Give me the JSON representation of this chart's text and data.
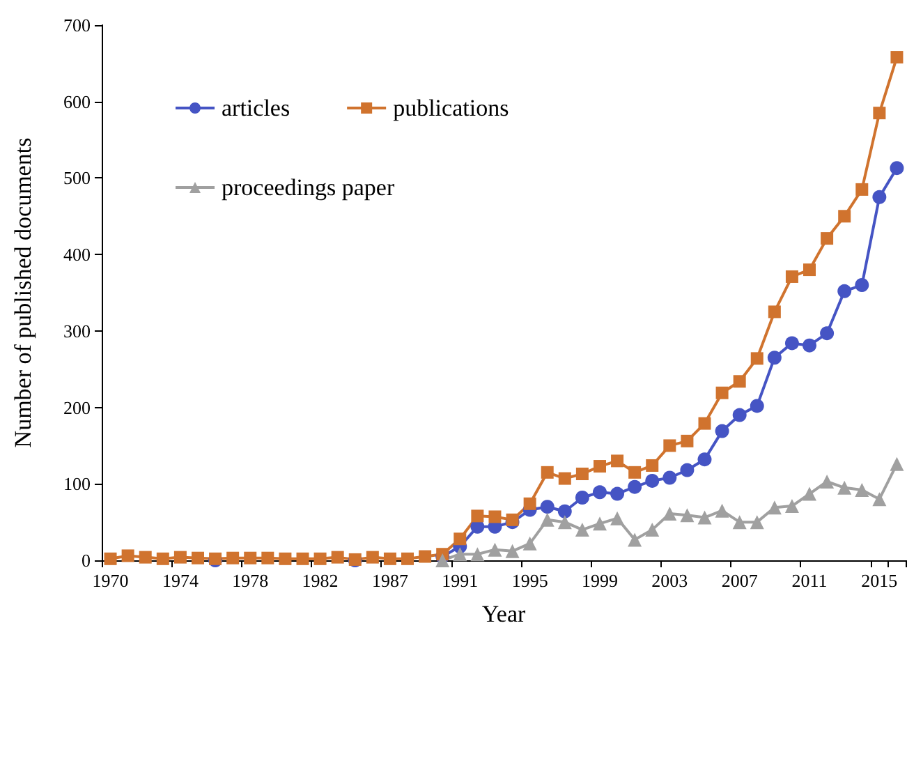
{
  "chart_data": {
    "type": "line",
    "xlabel": "Year",
    "ylabel": "Number of published documents",
    "categories": [
      "1970",
      null,
      null,
      null,
      "1974",
      null,
      null,
      null,
      "1978",
      null,
      null,
      null,
      "1982",
      null,
      null,
      null,
      "1987",
      null,
      null,
      null,
      "1991",
      null,
      null,
      null,
      "1995",
      null,
      null,
      null,
      "1999",
      null,
      null,
      null,
      "2003",
      null,
      null,
      null,
      "2007",
      null,
      null,
      null,
      "2011",
      null,
      null,
      null,
      "2015",
      null
    ],
    "series": [
      {
        "name": "articles",
        "color": "#4554c4",
        "marker": "circle",
        "values": [
          null,
          null,
          null,
          null,
          null,
          null,
          0,
          null,
          null,
          null,
          null,
          null,
          null,
          null,
          0,
          null,
          null,
          null,
          null,
          5,
          18,
          44,
          44,
          50,
          66,
          70,
          64,
          82,
          89,
          87,
          96,
          104,
          108,
          118,
          132,
          169,
          190,
          202,
          265,
          284,
          281,
          297,
          352,
          360,
          475,
          513
        ]
      },
      {
        "name": "publications",
        "color": "#d0732e",
        "marker": "square",
        "values": [
          2,
          6,
          4,
          2,
          4,
          3,
          2,
          3,
          3,
          3,
          2,
          2,
          2,
          4,
          1,
          4,
          2,
          2,
          5,
          8,
          28,
          58,
          57,
          53,
          74,
          115,
          107,
          113,
          123,
          130,
          115,
          124,
          150,
          156,
          179,
          219,
          234,
          264,
          325,
          371,
          380,
          421,
          450,
          485,
          585,
          658
        ]
      },
      {
        "name": "proceedings paper",
        "color": "#a0a0a0",
        "marker": "triangle",
        "values": [
          null,
          null,
          null,
          null,
          null,
          null,
          null,
          null,
          null,
          null,
          null,
          null,
          null,
          null,
          null,
          null,
          null,
          null,
          null,
          0,
          8,
          8,
          14,
          12,
          22,
          53,
          50,
          40,
          48,
          55,
          27,
          40,
          61,
          59,
          56,
          65,
          50,
          50,
          69,
          71,
          87,
          103,
          95,
          92,
          80,
          126
        ]
      }
    ],
    "ylim": [
      0,
      700
    ],
    "yticks": [
      0,
      100,
      200,
      300,
      400,
      500,
      600,
      700
    ],
    "grid": false,
    "legend": "top left",
    "line_style": "solid"
  }
}
